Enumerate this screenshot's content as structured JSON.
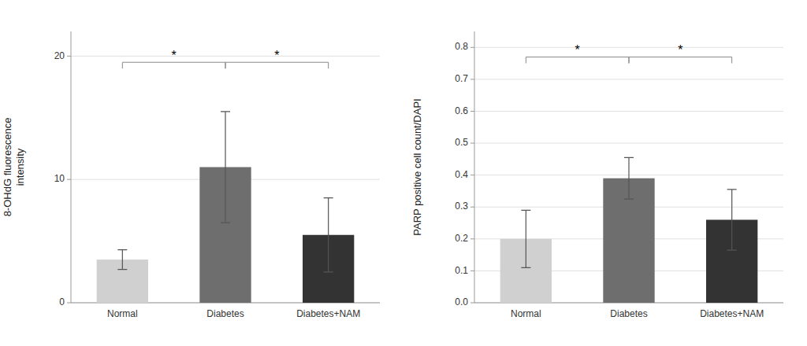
{
  "chart_data": [
    {
      "type": "bar",
      "categories": [
        "Normal",
        "Diabetes",
        "Diabetes+NAM"
      ],
      "values": [
        3.5,
        11.0,
        5.5
      ],
      "errors": [
        0.8,
        4.5,
        3.0
      ],
      "colors": [
        "#d0d0d0",
        "#6e6e6e",
        "#333333"
      ],
      "y_label": "8-OHdG fluorescence\nintensity",
      "ylim": [
        0,
        22
      ],
      "yticks": [
        0,
        10,
        20
      ],
      "grid": true,
      "annotations": [
        {
          "text": "*",
          "between": [
            "Normal",
            "Diabetes"
          ],
          "y": 19.5
        },
        {
          "text": "*",
          "between": [
            "Diabetes",
            "Diabetes+NAM"
          ],
          "y": 19.5
        }
      ]
    },
    {
      "type": "bar",
      "categories": [
        "Normal",
        "Diabetes",
        "Diabetes+NAM"
      ],
      "values": [
        0.2,
        0.39,
        0.26
      ],
      "errors": [
        0.09,
        0.065,
        0.095
      ],
      "colors": [
        "#d0d0d0",
        "#6e6e6e",
        "#333333"
      ],
      "y_label": "PARP positive cell count/DAPI",
      "ylim": [
        0,
        0.85
      ],
      "yticks": [
        {
          "value": 0,
          "label": "0.0"
        },
        0.1,
        0.2,
        0.3,
        0.4,
        0.5,
        0.6,
        0.7,
        0.8
      ],
      "grid": true,
      "annotations": [
        {
          "text": "*",
          "between": [
            "Normal",
            "Diabetes"
          ],
          "y": 0.77
        },
        {
          "text": "*",
          "between": [
            "Diabetes",
            "Diabetes+NAM"
          ],
          "y": 0.77
        }
      ]
    }
  ]
}
